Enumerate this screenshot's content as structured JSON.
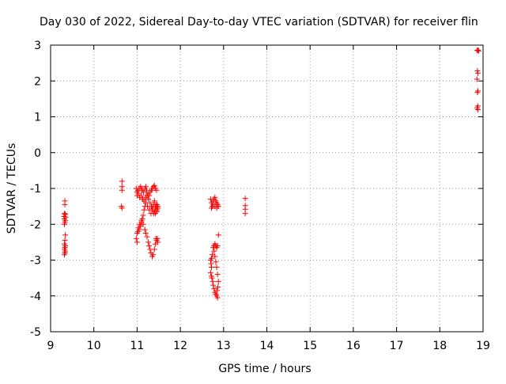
{
  "chart_data": {
    "type": "scatter",
    "title": "Day 030 of 2022, Sidereal Day-to-day VTEC variation (SDTVAR) for receiver flin",
    "xlabel": "GPS time / hours",
    "ylabel": "SDTVAR / TECUs",
    "xlim": [
      9,
      19
    ],
    "ylim": [
      -5,
      3
    ],
    "xticks": [
      "9",
      "10",
      "11",
      "12",
      "13",
      "14",
      "15",
      "16",
      "17",
      "18",
      "19"
    ],
    "yticks": [
      "3",
      "2",
      "1",
      "0",
      "-1",
      "-2",
      "-3",
      "-4",
      "-5"
    ],
    "grid": true,
    "marker": "+",
    "color": "#ff0000",
    "series": [
      {
        "name": "SDTVAR",
        "points": [
          [
            9.33,
            -1.35
          ],
          [
            9.33,
            -1.45
          ],
          [
            9.32,
            -1.7
          ],
          [
            9.34,
            -1.72
          ],
          [
            9.31,
            -1.78
          ],
          [
            9.35,
            -1.8
          ],
          [
            9.32,
            -1.85
          ],
          [
            9.34,
            -1.9
          ],
          [
            9.33,
            -1.95
          ],
          [
            9.32,
            -2.0
          ],
          [
            9.34,
            -2.3
          ],
          [
            9.33,
            -2.45
          ],
          [
            9.32,
            -2.55
          ],
          [
            9.34,
            -2.6
          ],
          [
            9.33,
            -2.65
          ],
          [
            9.32,
            -2.7
          ],
          [
            9.34,
            -2.75
          ],
          [
            9.33,
            -2.8
          ],
          [
            9.32,
            -2.85
          ],
          [
            10.65,
            -0.8
          ],
          [
            10.65,
            -0.95
          ],
          [
            10.65,
            -1.05
          ],
          [
            10.64,
            -1.5
          ],
          [
            10.65,
            -1.55
          ],
          [
            10.98,
            -1.0
          ],
          [
            11.0,
            -1.1
          ],
          [
            11.02,
            -1.05
          ],
          [
            11.05,
            -1.0
          ],
          [
            11.08,
            -0.95
          ],
          [
            11.1,
            -1.0
          ],
          [
            11.12,
            -1.05
          ],
          [
            11.15,
            -1.1
          ],
          [
            11.18,
            -1.0
          ],
          [
            11.2,
            -0.95
          ],
          [
            11.22,
            -1.05
          ],
          [
            11.25,
            -1.15
          ],
          [
            11.28,
            -1.2
          ],
          [
            11.3,
            -1.1
          ],
          [
            11.33,
            -1.05
          ],
          [
            11.35,
            -1.0
          ],
          [
            11.38,
            -0.95
          ],
          [
            11.4,
            -0.92
          ],
          [
            11.42,
            -1.0
          ],
          [
            11.45,
            -1.05
          ],
          [
            11.0,
            -1.2
          ],
          [
            11.03,
            -1.15
          ],
          [
            11.06,
            -1.25
          ],
          [
            11.1,
            -1.2
          ],
          [
            11.13,
            -1.3
          ],
          [
            11.16,
            -1.35
          ],
          [
            11.2,
            -1.25
          ],
          [
            11.23,
            -1.2
          ],
          [
            11.26,
            -1.3
          ],
          [
            11.3,
            -1.4
          ],
          [
            11.33,
            -1.5
          ],
          [
            11.36,
            -1.6
          ],
          [
            11.38,
            -1.7
          ],
          [
            11.4,
            -1.65
          ],
          [
            11.42,
            -1.55
          ],
          [
            11.44,
            -1.5
          ],
          [
            11.46,
            -1.45
          ],
          [
            11.48,
            -1.55
          ],
          [
            11.45,
            -1.65
          ],
          [
            11.42,
            -1.7
          ],
          [
            11.18,
            -1.5
          ],
          [
            11.16,
            -1.6
          ],
          [
            11.14,
            -1.75
          ],
          [
            11.12,
            -1.85
          ],
          [
            11.1,
            -1.95
          ],
          [
            11.08,
            -2.05
          ],
          [
            11.05,
            -2.15
          ],
          [
            11.02,
            -2.2
          ],
          [
            11.0,
            -2.25
          ],
          [
            10.98,
            -2.4
          ],
          [
            11.0,
            -2.5
          ],
          [
            11.03,
            -2.1
          ],
          [
            11.06,
            -2.0
          ],
          [
            11.1,
            -1.9
          ],
          [
            11.14,
            -2.0
          ],
          [
            11.18,
            -2.15
          ],
          [
            11.2,
            -2.25
          ],
          [
            11.23,
            -2.35
          ],
          [
            11.26,
            -2.5
          ],
          [
            11.28,
            -2.6
          ],
          [
            11.3,
            -2.7
          ],
          [
            11.32,
            -2.8
          ],
          [
            11.35,
            -2.9
          ],
          [
            11.37,
            -2.85
          ],
          [
            11.4,
            -2.7
          ],
          [
            11.42,
            -2.55
          ],
          [
            11.45,
            -2.45
          ],
          [
            11.47,
            -2.4
          ],
          [
            11.48,
            -2.5
          ],
          [
            11.44,
            -2.4
          ],
          [
            11.2,
            -1.4
          ],
          [
            11.24,
            -1.5
          ],
          [
            11.28,
            -1.6
          ],
          [
            11.32,
            -1.7
          ],
          [
            11.35,
            -1.55
          ],
          [
            11.38,
            -1.45
          ],
          [
            11.4,
            -1.35
          ],
          [
            11.43,
            -1.45
          ],
          [
            11.46,
            -1.6
          ],
          [
            11.48,
            -1.5
          ],
          [
            12.7,
            -1.3
          ],
          [
            12.72,
            -1.4
          ],
          [
            12.74,
            -1.5
          ],
          [
            12.75,
            -1.35
          ],
          [
            12.78,
            -1.3
          ],
          [
            12.8,
            -1.25
          ],
          [
            12.82,
            -1.35
          ],
          [
            12.84,
            -1.4
          ],
          [
            12.86,
            -1.45
          ],
          [
            12.88,
            -1.5
          ],
          [
            12.72,
            -1.55
          ],
          [
            12.76,
            -1.45
          ],
          [
            12.8,
            -1.5
          ],
          [
            12.84,
            -1.55
          ],
          [
            12.7,
            -3.0
          ],
          [
            12.71,
            -3.1
          ],
          [
            12.72,
            -3.2
          ],
          [
            12.7,
            -3.35
          ],
          [
            12.72,
            -3.45
          ],
          [
            12.73,
            -3.5
          ],
          [
            12.75,
            -3.6
          ],
          [
            12.76,
            -3.7
          ],
          [
            12.78,
            -3.8
          ],
          [
            12.8,
            -3.9
          ],
          [
            12.82,
            -3.95
          ],
          [
            12.84,
            -4.0
          ],
          [
            12.86,
            -4.05
          ],
          [
            12.85,
            -3.85
          ],
          [
            12.87,
            -3.75
          ],
          [
            12.88,
            -3.6
          ],
          [
            12.86,
            -3.4
          ],
          [
            12.84,
            -3.2
          ],
          [
            12.82,
            -3.05
          ],
          [
            12.8,
            -2.9
          ],
          [
            12.78,
            -2.75
          ],
          [
            12.76,
            -2.65
          ],
          [
            12.78,
            -2.6
          ],
          [
            12.8,
            -2.55
          ],
          [
            12.82,
            -2.6
          ],
          [
            12.84,
            -2.65
          ],
          [
            12.86,
            -2.6
          ],
          [
            12.88,
            -2.3
          ],
          [
            12.74,
            -2.85
          ],
          [
            12.72,
            -2.95
          ],
          [
            13.5,
            -1.28
          ],
          [
            13.5,
            -1.48
          ],
          [
            13.5,
            -1.58
          ],
          [
            13.5,
            -1.7
          ],
          [
            18.86,
            2.85
          ],
          [
            18.88,
            2.86
          ],
          [
            18.9,
            2.84
          ],
          [
            18.87,
            2.28
          ],
          [
            18.88,
            2.22
          ],
          [
            18.86,
            2.05
          ],
          [
            18.88,
            1.72
          ],
          [
            18.87,
            1.68
          ],
          [
            18.88,
            1.3
          ],
          [
            18.86,
            1.25
          ],
          [
            18.88,
            1.2
          ]
        ]
      }
    ]
  }
}
